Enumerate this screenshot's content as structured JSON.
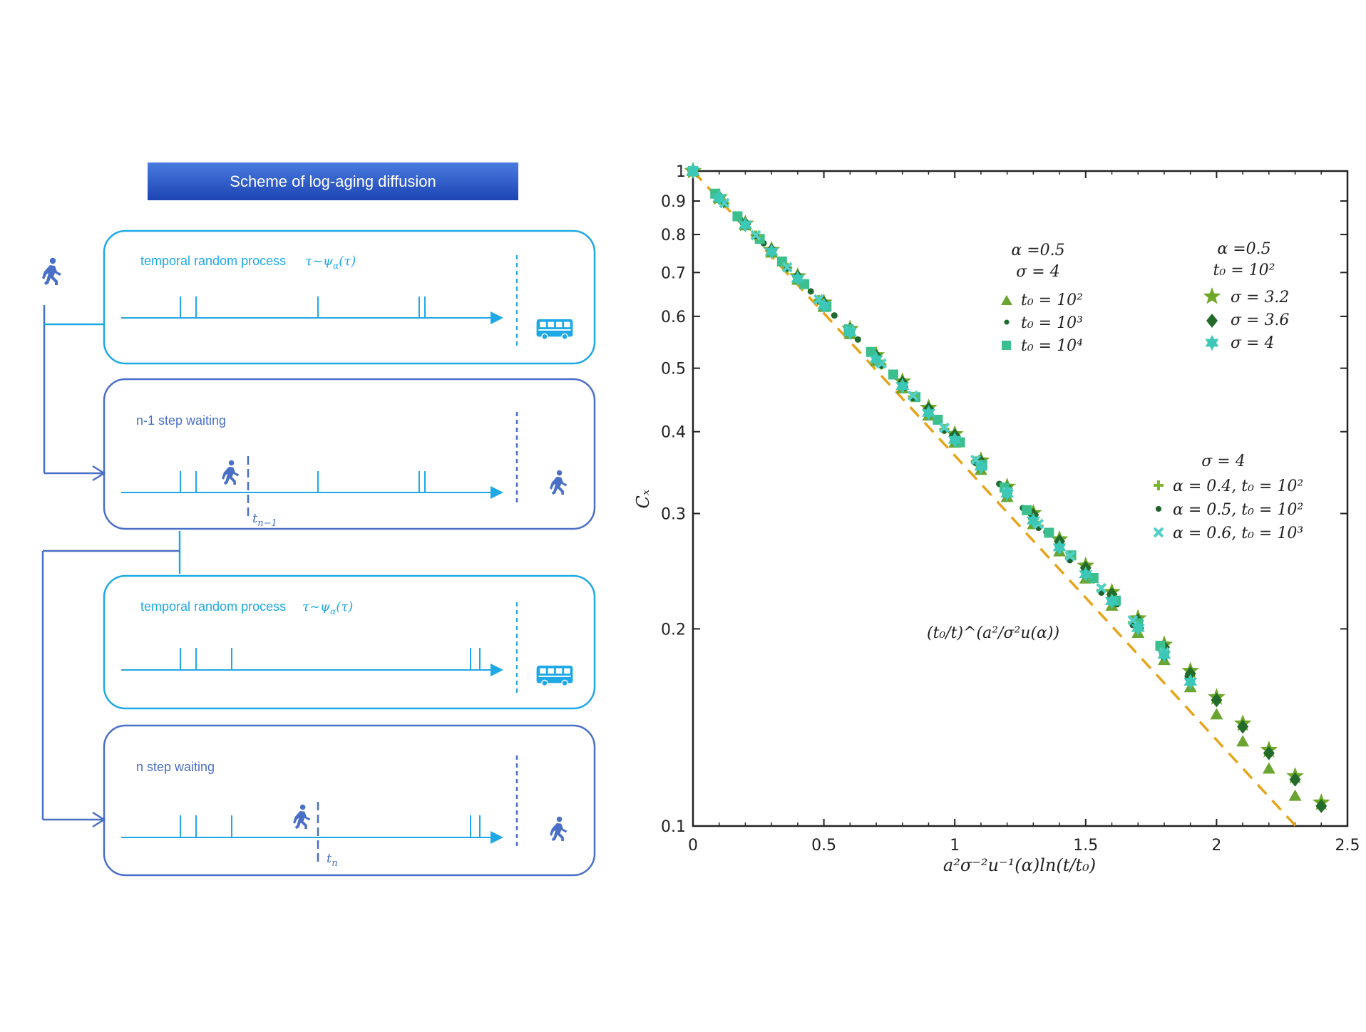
{
  "header": {
    "title": "Scheme of log-aging diffusion"
  },
  "panels": [
    {
      "label": "temporal random process",
      "formula": "τ~ψ",
      "formula_sub": "α",
      "formula_tail": "(τ)"
    },
    {
      "label": "n-1 step waiting",
      "time_label": "t",
      "time_sub": "n−1"
    },
    {
      "label": "temporal random process",
      "formula": "τ~ψ",
      "formula_sub": "α",
      "formula_tail": "(τ)"
    },
    {
      "label": "n step waiting",
      "time_label": "t",
      "time_sub": "n"
    }
  ],
  "icons": {
    "walker": "walking-person-icon",
    "bus": "bus-icon"
  },
  "colors": {
    "light_blue": "#1fa8e6",
    "dark_blue": "#4a6fc6",
    "header_top": "#3b66d6",
    "header_bottom": "#1d46b8"
  },
  "chart_data": {
    "type": "scatter",
    "xlabel": "a²σ⁻²u⁻¹(α)ln(t/t₀)",
    "ylabel": "Cₓ",
    "xlim": [
      0,
      2.5
    ],
    "ylim": [
      0.1,
      1
    ],
    "yscale": "log",
    "xticks": [
      "0",
      "0.5",
      "1",
      "1.5",
      "2",
      "2.5"
    ],
    "yticks": [
      "0.1",
      "0.2",
      "0.3",
      "0.4",
      "0.5",
      "0.6",
      "0.7",
      "0.8",
      "0.9",
      "1"
    ],
    "annotation": "(t₀/t)^(a²/σ²u(α))",
    "reference_line": {
      "slope": -1,
      "color": "#e5a51b",
      "style": "dashed"
    },
    "legend_groups": [
      {
        "title": [
          "α =0.5",
          "σ = 4"
        ],
        "entries": [
          "t₀ = 10²",
          "t₀ = 10³",
          "t₀ = 10⁴"
        ]
      },
      {
        "title": [
          "α =0.5",
          "t₀ = 10²"
        ],
        "entries": [
          "σ = 3.2",
          "σ = 3.6",
          "σ = 4"
        ]
      },
      {
        "title": [
          "σ = 4"
        ],
        "entries": [
          "α = 0.4, t₀ = 10²",
          "α = 0.5, t₀ = 10²",
          "α = 0.6, t₀ = 10³"
        ]
      }
    ],
    "series": [
      {
        "name": "t₀ = 10²",
        "marker": "triangle",
        "color": "#6aa531",
        "slope": 0.955,
        "x_step": 0.1,
        "x_max": 2.3
      },
      {
        "name": "t₀ = 10³",
        "marker": "dot",
        "color": "#1e6b2e",
        "slope": 0.94,
        "x_step": 0.09,
        "x_max": 1.95
      },
      {
        "name": "t₀ = 10⁴",
        "marker": "square",
        "color": "#3cbf8f",
        "slope": 0.935,
        "x_step": 0.085,
        "x_max": 1.85
      },
      {
        "name": "σ = 3.2",
        "marker": "star",
        "color": "#6fa828",
        "slope": 0.925,
        "x_step": 0.1,
        "x_max": 2.42
      },
      {
        "name": "σ = 3.6",
        "marker": "diamond",
        "color": "#236b2a",
        "slope": 0.93,
        "x_step": 0.1,
        "x_max": 2.48
      },
      {
        "name": "σ = 4",
        "marker": "hexstar",
        "color": "#3cc8b8",
        "slope": 0.945,
        "x_step": 0.1,
        "x_max": 1.95
      },
      {
        "name": "α = 0.4, t₀ = 10²",
        "marker": "plus",
        "color": "#7cb62e",
        "slope": 0.945,
        "x_step": 0.12,
        "x_max": 1.9
      },
      {
        "name": "α = 0.5, t₀ = 10²",
        "marker": "dot",
        "color": "#1e5f2a",
        "slope": 0.95,
        "x_step": 0.12,
        "x_max": 1.9
      },
      {
        "name": "α = 0.6, t₀ = 10³",
        "marker": "cross",
        "color": "#4fd0c8",
        "slope": 0.94,
        "x_step": 0.12,
        "x_max": 1.9
      }
    ]
  }
}
